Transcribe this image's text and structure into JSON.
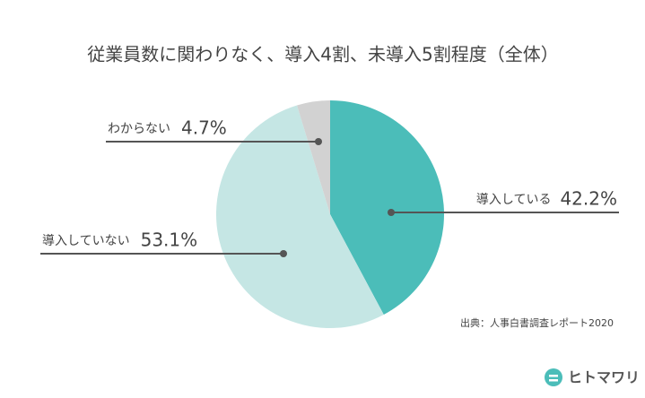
{
  "chart_data": {
    "type": "pie",
    "title": "従業員数に関わりなく、導入4割、未導入5割程度（全体）",
    "categories": [
      "導入している",
      "導入していない",
      "わからない"
    ],
    "values": [
      42.2,
      53.1,
      4.7
    ],
    "value_labels": [
      "42.2%",
      "53.1%",
      "4.7%"
    ],
    "colors": [
      "#4bbdb9",
      "#c5e6e4",
      "#d2d2d2"
    ],
    "source": "出典：人事白書調査レポート2020",
    "brand": "ヒトマワリ"
  }
}
